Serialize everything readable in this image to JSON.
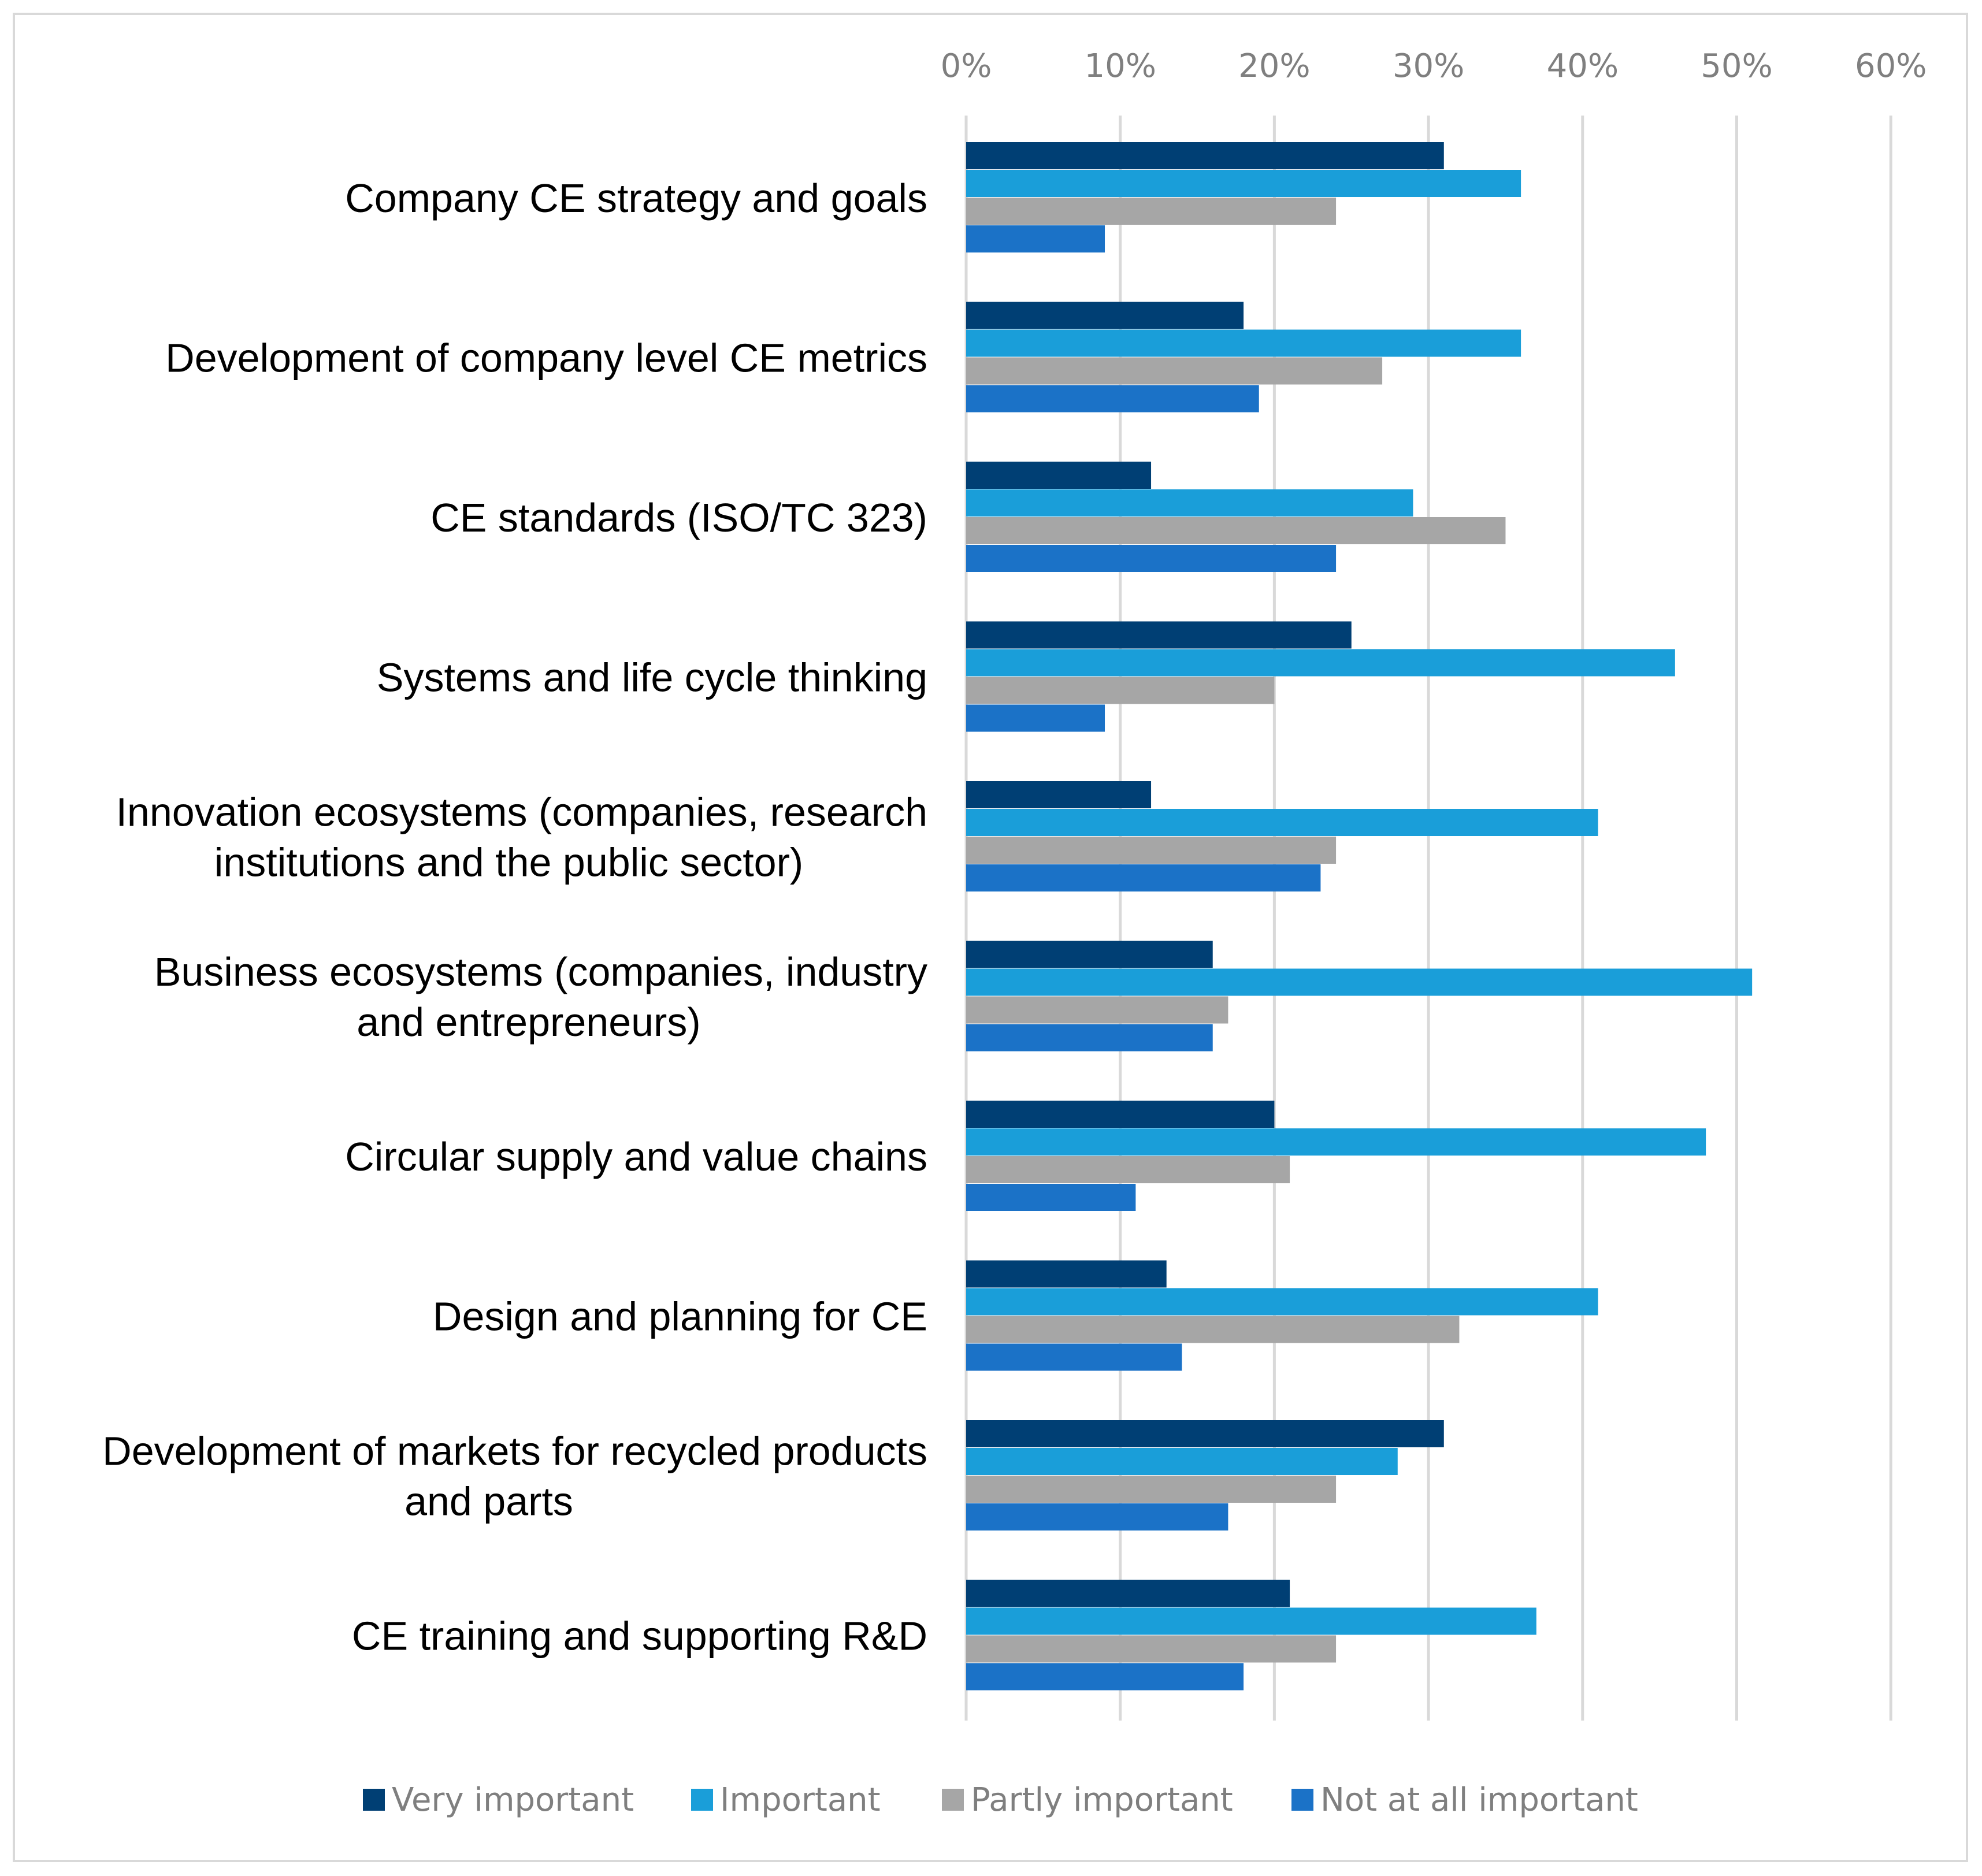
{
  "chart_data": {
    "type": "bar",
    "orientation": "horizontal",
    "title": "",
    "xlabel": "",
    "ylabel": "",
    "xlim": [
      0,
      60
    ],
    "x_ticks": [
      "0%",
      "10%",
      "20%",
      "30%",
      "40%",
      "50%",
      "60%"
    ],
    "x_axis_position": "top",
    "grid": true,
    "legend_position": "bottom",
    "categories": [
      [
        "Company CE strategy and goals"
      ],
      [
        "Development of company level CE metrics"
      ],
      [
        "CE standards (ISO/TC 323)"
      ],
      [
        "Systems and life cycle thinking"
      ],
      [
        "Innovation ecosystems (companies, research",
        "institutions and the public sector)"
      ],
      [
        "Business ecosystems (companies, industry",
        "and entrepreneurs)"
      ],
      [
        "Circular supply and value chains"
      ],
      [
        "Design and planning for CE"
      ],
      [
        "Development of markets for recycled products",
        "and parts"
      ],
      [
        "CE training and supporting R&D"
      ]
    ],
    "series": [
      {
        "name": "Very important",
        "color": "#003f74",
        "values": [
          31,
          18,
          12,
          25,
          12,
          16,
          20,
          13,
          31,
          21
        ]
      },
      {
        "name": "Important",
        "color": "#1a9ed9",
        "values": [
          36,
          36,
          29,
          46,
          41,
          51,
          48,
          41,
          28,
          37
        ]
      },
      {
        "name": "Partly important",
        "color": "#a6a6a6",
        "values": [
          24,
          27,
          35,
          20,
          24,
          17,
          21,
          32,
          24,
          24
        ]
      },
      {
        "name": "Not at all important",
        "color": "#1b72c7",
        "values": [
          9,
          19,
          24,
          9,
          23,
          16,
          11,
          14,
          17,
          18
        ]
      }
    ]
  }
}
